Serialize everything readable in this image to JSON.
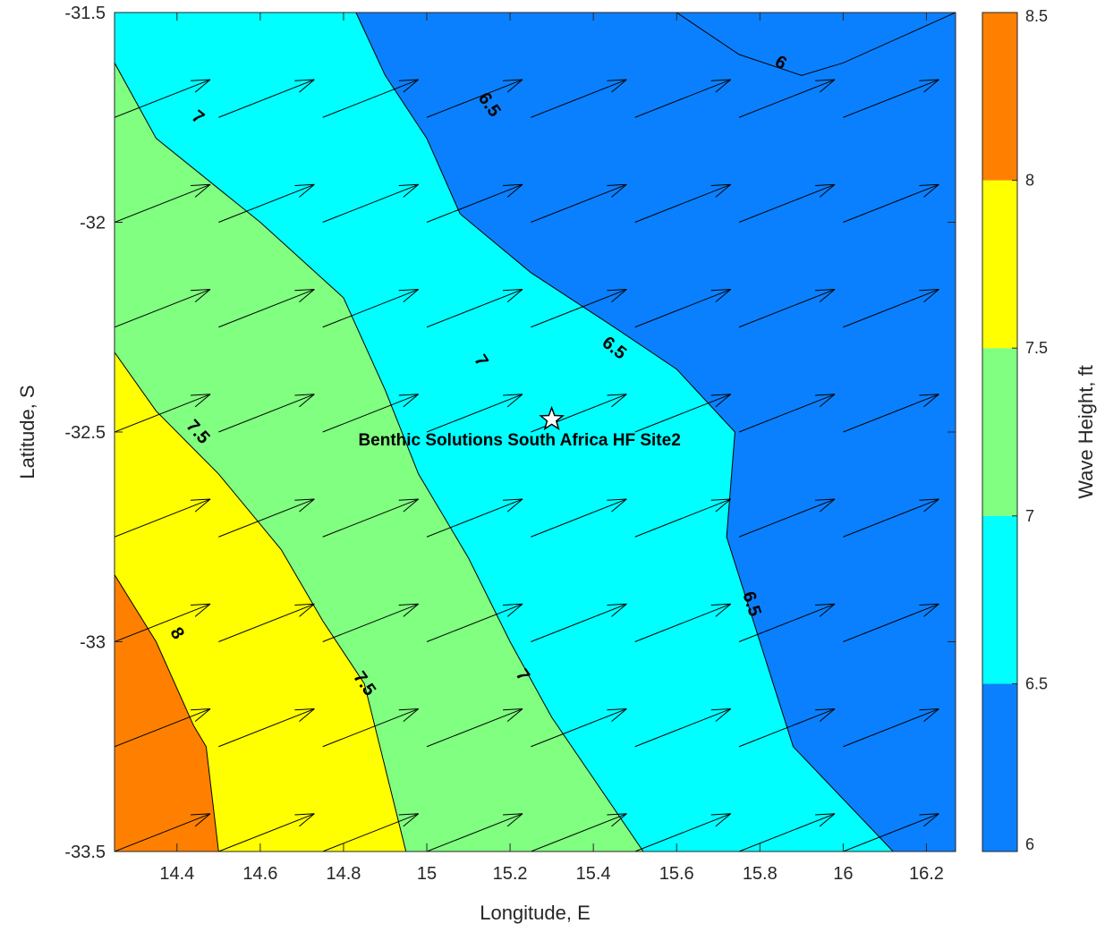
{
  "chart_data": {
    "type": "filled-contour",
    "title": "",
    "xlabel": "Longitude, E",
    "ylabel": "Latitude, S",
    "xlim": [
      14.25,
      16.27
    ],
    "ylim": [
      -33.5,
      -31.5
    ],
    "xticks": [
      "14.4",
      "14.6",
      "14.8",
      "15",
      "15.2",
      "15.4",
      "15.6",
      "15.8",
      "16",
      "16.2"
    ],
    "xtick_values": [
      14.4,
      14.6,
      14.8,
      15.0,
      15.2,
      15.4,
      15.6,
      15.8,
      16.0,
      16.2
    ],
    "yticks": [
      "-31.5",
      "-32",
      "-32.5",
      "-33",
      "-33.5"
    ],
    "ytick_values": [
      -31.5,
      -32.0,
      -32.5,
      -33.0,
      -33.5
    ],
    "colorbar": {
      "label": "Wave Height, ft",
      "ticks": [
        "6",
        "6.5",
        "7",
        "7.5",
        "8",
        "8.5"
      ],
      "levels": [
        6,
        6.5,
        7,
        7.5,
        8,
        8.5
      ],
      "colors": [
        "#0a80ff",
        "#00ffff",
        "#80ff80",
        "#ffff00",
        "#ff8000"
      ]
    },
    "bands": [
      {
        "range": [
          8.0,
          8.5
        ],
        "color": "#ff8000",
        "polygon": [
          [
            14.25,
            -32.84
          ],
          [
            14.35,
            -33.0
          ],
          [
            14.44,
            -33.2
          ],
          [
            14.47,
            -33.25
          ],
          [
            14.5,
            -33.5
          ],
          [
            14.25,
            -33.5
          ]
        ]
      },
      {
        "range": [
          7.5,
          8.0
        ],
        "color": "#ffff00",
        "polygon": [
          [
            14.25,
            -32.31
          ],
          [
            14.35,
            -32.45
          ],
          [
            14.5,
            -32.6
          ],
          [
            14.65,
            -32.78
          ],
          [
            14.75,
            -32.95
          ],
          [
            14.85,
            -33.1
          ],
          [
            14.95,
            -33.5
          ],
          [
            14.5,
            -33.5
          ],
          [
            14.47,
            -33.25
          ],
          [
            14.44,
            -33.2
          ],
          [
            14.35,
            -33.0
          ],
          [
            14.25,
            -32.84
          ]
        ]
      },
      {
        "range": [
          7.0,
          7.5
        ],
        "color": "#80ff80",
        "polygon": [
          [
            14.25,
            -31.62
          ],
          [
            14.35,
            -31.8
          ],
          [
            14.6,
            -32.0
          ],
          [
            14.8,
            -32.18
          ],
          [
            14.9,
            -32.4
          ],
          [
            14.98,
            -32.6
          ],
          [
            15.1,
            -32.8
          ],
          [
            15.2,
            -33.0
          ],
          [
            15.3,
            -33.18
          ],
          [
            15.52,
            -33.5
          ],
          [
            14.95,
            -33.5
          ],
          [
            14.85,
            -33.1
          ],
          [
            14.75,
            -32.95
          ],
          [
            14.65,
            -32.78
          ],
          [
            14.5,
            -32.6
          ],
          [
            14.35,
            -32.45
          ],
          [
            14.25,
            -32.31
          ]
        ]
      },
      {
        "range": [
          6.5,
          7.0
        ],
        "color": "#00ffff",
        "polygon": [
          [
            14.25,
            -31.5
          ],
          [
            14.83,
            -31.5
          ],
          [
            14.9,
            -31.65
          ],
          [
            15.0,
            -31.8
          ],
          [
            15.08,
            -31.98
          ],
          [
            15.25,
            -32.12
          ],
          [
            15.45,
            -32.25
          ],
          [
            15.6,
            -32.35
          ],
          [
            15.74,
            -32.5
          ],
          [
            15.72,
            -32.75
          ],
          [
            15.8,
            -33.0
          ],
          [
            15.88,
            -33.25
          ],
          [
            16.12,
            -33.5
          ],
          [
            15.52,
            -33.5
          ],
          [
            15.3,
            -33.18
          ],
          [
            15.2,
            -33.0
          ],
          [
            15.1,
            -32.8
          ],
          [
            14.98,
            -32.6
          ],
          [
            14.9,
            -32.4
          ],
          [
            14.8,
            -32.18
          ],
          [
            14.6,
            -32.0
          ],
          [
            14.35,
            -31.8
          ],
          [
            14.25,
            -31.62
          ]
        ]
      },
      {
        "range": [
          6.0,
          6.5
        ],
        "color": "#0a80ff",
        "polygon": [
          [
            14.83,
            -31.5
          ],
          [
            16.27,
            -31.5
          ],
          [
            16.27,
            -33.5
          ],
          [
            16.12,
            -33.5
          ],
          [
            15.88,
            -33.25
          ],
          [
            15.8,
            -33.0
          ],
          [
            15.72,
            -32.75
          ],
          [
            15.74,
            -32.5
          ],
          [
            15.6,
            -32.35
          ],
          [
            15.45,
            -32.25
          ],
          [
            15.25,
            -32.12
          ],
          [
            15.08,
            -31.98
          ],
          [
            15.0,
            -31.8
          ],
          [
            14.9,
            -31.65
          ]
        ]
      }
    ],
    "contours": [
      {
        "level": 8,
        "points": [
          [
            14.25,
            -32.84
          ],
          [
            14.35,
            -33.0
          ],
          [
            14.44,
            -33.2
          ],
          [
            14.47,
            -33.25
          ],
          [
            14.5,
            -33.5
          ]
        ]
      },
      {
        "level": 7.5,
        "points": [
          [
            14.25,
            -32.31
          ],
          [
            14.35,
            -32.45
          ],
          [
            14.5,
            -32.6
          ],
          [
            14.65,
            -32.78
          ],
          [
            14.75,
            -32.95
          ],
          [
            14.85,
            -33.1
          ],
          [
            14.95,
            -33.5
          ]
        ]
      },
      {
        "level": 7,
        "points": [
          [
            14.25,
            -31.62
          ],
          [
            14.35,
            -31.8
          ],
          [
            14.6,
            -32.0
          ],
          [
            14.8,
            -32.18
          ],
          [
            14.9,
            -32.4
          ],
          [
            14.98,
            -32.6
          ],
          [
            15.1,
            -32.8
          ],
          [
            15.2,
            -33.0
          ],
          [
            15.3,
            -33.18
          ],
          [
            15.52,
            -33.5
          ]
        ]
      },
      {
        "level": 6.5,
        "points": [
          [
            14.83,
            -31.5
          ],
          [
            14.9,
            -31.65
          ],
          [
            15.0,
            -31.8
          ],
          [
            15.08,
            -31.98
          ],
          [
            15.25,
            -32.12
          ],
          [
            15.45,
            -32.25
          ],
          [
            15.6,
            -32.35
          ],
          [
            15.74,
            -32.5
          ],
          [
            15.72,
            -32.75
          ],
          [
            15.8,
            -33.0
          ],
          [
            15.88,
            -33.25
          ],
          [
            16.12,
            -33.5
          ]
        ]
      },
      {
        "level": 6,
        "points": [
          [
            15.6,
            -31.5
          ],
          [
            15.75,
            -31.6
          ],
          [
            15.9,
            -31.65
          ],
          [
            16.0,
            -31.62
          ],
          [
            16.27,
            -31.5
          ]
        ]
      }
    ],
    "contour_labels": [
      {
        "text": "8",
        "x": 14.4,
        "y": -32.98,
        "angle": 58
      },
      {
        "text": "7.5",
        "x": 14.45,
        "y": -32.5,
        "angle": 48
      },
      {
        "text": "7.5",
        "x": 14.85,
        "y": -33.1,
        "angle": 55
      },
      {
        "text": "7",
        "x": 14.45,
        "y": -31.75,
        "angle": 38
      },
      {
        "text": "7",
        "x": 15.13,
        "y": -32.33,
        "angle": 58
      },
      {
        "text": "7",
        "x": 15.23,
        "y": -33.08,
        "angle": 55
      },
      {
        "text": "6.5",
        "x": 15.15,
        "y": -31.72,
        "angle": 55
      },
      {
        "text": "6.5",
        "x": 15.45,
        "y": -32.3,
        "angle": 38
      },
      {
        "text": "6.5",
        "x": 15.78,
        "y": -32.91,
        "angle": 72
      },
      {
        "text": "6",
        "x": 15.85,
        "y": -31.62,
        "angle": 30
      }
    ],
    "vectors": {
      "x": [
        14.25,
        14.5,
        14.75,
        15.0,
        15.25,
        15.5,
        15.75,
        16.0
      ],
      "y": [
        -31.75,
        -32.0,
        -32.25,
        -32.5,
        -32.75,
        -33.0,
        -33.25,
        -33.5
      ],
      "u": 0.23,
      "v": 0.09
    },
    "site": {
      "x": 15.3,
      "y": -32.47,
      "label": "Benthic Solutions South Africa HF Site2"
    }
  }
}
